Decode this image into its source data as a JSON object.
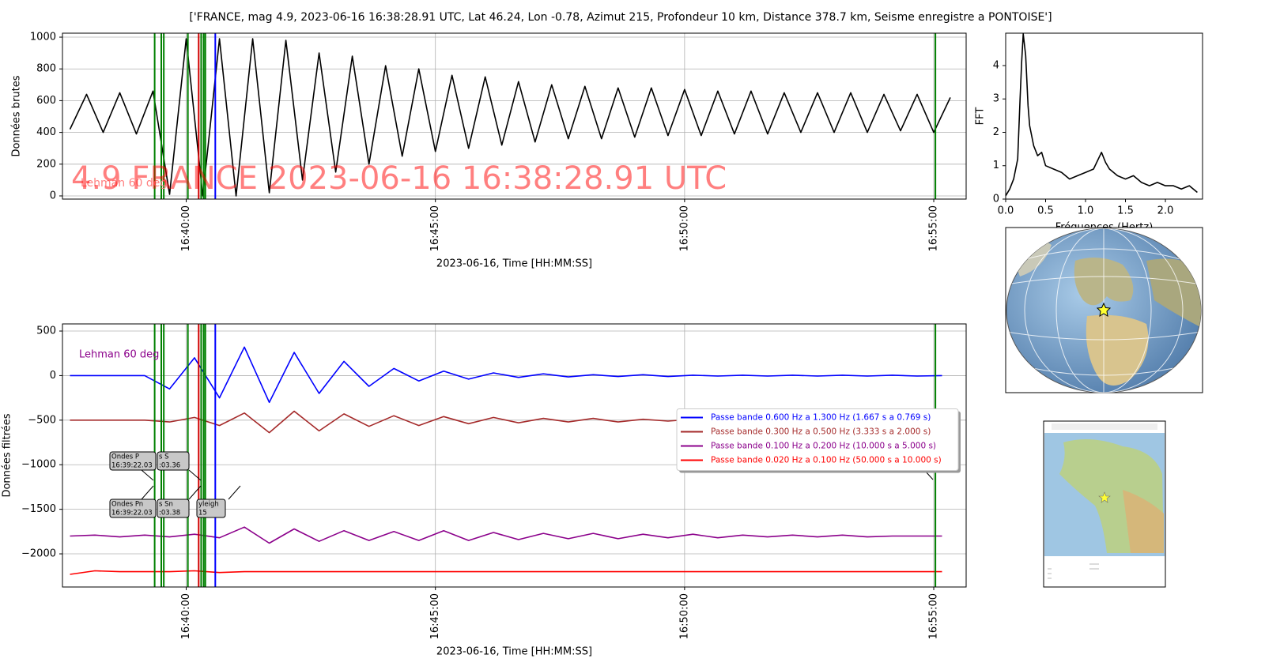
{
  "title": "['FRANCE, mag 4.9, 2023-06-16 16:38:28.91 UTC, Lat 46.24, Lon -0.78, Azimut 215, Profondeur 10 km, Distance 378.7 km, Seisme enregistre a PONTOISE']",
  "phase_lines": [
    {
      "x": "16:39:22",
      "color": "#008000"
    },
    {
      "x": "16:39:30",
      "color": "#008000"
    },
    {
      "x": "16:39:33",
      "color": "#008000"
    },
    {
      "x": "16:40:02",
      "color": "#008000"
    },
    {
      "x": "16:40:15",
      "color": "#d00000"
    },
    {
      "x": "16:40:18",
      "color": "#008000"
    },
    {
      "x": "16:40:21",
      "color": "#008000"
    },
    {
      "x": "16:40:23",
      "color": "#008000"
    },
    {
      "x": "16:40:35",
      "color": "#0000ff"
    },
    {
      "x": "16:55:02",
      "color": "#008000"
    }
  ],
  "chart_data": [
    {
      "type": "line",
      "ylabel": "Données brutes",
      "xlabel": "2023-06-16, Time [HH:MM:SS]",
      "annotations": [
        "Lehman 60 deg",
        "4.9 FRANCE 2023-06-16 16:38:28.91 UTC"
      ],
      "x": [
        "16:37:40",
        "16:38:00",
        "16:38:20",
        "16:38:40",
        "16:39:00",
        "16:39:20",
        "16:39:40",
        "16:40:00",
        "16:40:20",
        "16:40:40",
        "16:41:00",
        "16:41:20",
        "16:41:40",
        "16:42:00",
        "16:42:20",
        "16:42:40",
        "16:43:00",
        "16:43:20",
        "16:43:40",
        "16:44:00",
        "16:44:20",
        "16:44:40",
        "16:45:00",
        "16:45:20",
        "16:45:40",
        "16:46:00",
        "16:46:20",
        "16:46:40",
        "16:47:00",
        "16:47:20",
        "16:47:40",
        "16:48:00",
        "16:48:20",
        "16:48:40",
        "16:49:00",
        "16:49:20",
        "16:49:40",
        "16:50:00",
        "16:50:20",
        "16:50:40",
        "16:51:00",
        "16:51:20",
        "16:51:40",
        "16:52:00",
        "16:52:20",
        "16:52:40",
        "16:53:00",
        "16:53:20",
        "16:53:40",
        "16:54:00",
        "16:54:20",
        "16:54:40",
        "16:55:00",
        "16:55:20"
      ],
      "values": [
        420,
        640,
        400,
        650,
        390,
        660,
        10,
        990,
        0,
        990,
        0,
        990,
        20,
        980,
        100,
        900,
        150,
        880,
        200,
        820,
        250,
        800,
        280,
        760,
        300,
        750,
        320,
        720,
        340,
        700,
        360,
        690,
        360,
        680,
        370,
        680,
        380,
        670,
        380,
        660,
        390,
        660,
        390,
        650,
        400,
        650,
        400,
        650,
        400,
        640,
        410,
        640,
        400,
        620
      ],
      "color": "#000000",
      "xlim": [
        "16:37:31",
        "16:55:39"
      ],
      "xticks": [
        "16:40:00",
        "16:45:00",
        "16:50:00",
        "16:55:00"
      ],
      "ylim": [
        -20,
        1025
      ],
      "yticks": [
        0,
        200,
        400,
        600,
        800,
        1000
      ],
      "grid": true,
      "phase_lines": true
    },
    {
      "type": "line",
      "ylabel": "FFT",
      "xlabel": "Fréquences (Hertz)",
      "x": [
        0,
        0.05,
        0.1,
        0.15,
        0.18,
        0.2,
        0.22,
        0.25,
        0.28,
        0.3,
        0.35,
        0.4,
        0.45,
        0.5,
        0.6,
        0.7,
        0.8,
        0.9,
        1.0,
        1.1,
        1.2,
        1.25,
        1.3,
        1.4,
        1.5,
        1.6,
        1.7,
        1.8,
        1.9,
        2.0,
        2.1,
        2.2,
        2.3,
        2.4
      ],
      "values": [
        0.1,
        0.3,
        0.6,
        1.2,
        3.0,
        4.1,
        4.95,
        4.3,
        2.8,
        2.2,
        1.6,
        1.3,
        1.4,
        1.0,
        0.9,
        0.8,
        0.6,
        0.7,
        0.8,
        0.9,
        1.4,
        1.1,
        0.9,
        0.7,
        0.6,
        0.7,
        0.5,
        0.4,
        0.5,
        0.4,
        0.4,
        0.3,
        0.4,
        0.2
      ],
      "color": "#000000",
      "xlim": [
        0,
        2.465
      ],
      "ylim": [
        0,
        4.97
      ],
      "xticks": [
        {
          "value": 0,
          "label": "0.0"
        },
        0.5,
        {
          "value": 1,
          "label": "1.0"
        },
        1.5,
        {
          "value": 2,
          "label": "2.0"
        }
      ],
      "yticks": [
        0,
        1,
        2,
        3,
        4
      ],
      "grid": false
    },
    {
      "type": "line",
      "ylabel": "Données filtrées",
      "xlabel": "2023-06-16, Time [HH:MM:SS]",
      "annotations": [
        "Lehman 60 deg"
      ],
      "phase_labels": [
        [
          "Ondes P",
          "16:39:22.03"
        ],
        [
          "s S",
          ":03.36"
        ],
        [
          "Ondes Pn",
          "16:39:22.03"
        ],
        [
          "s Sn",
          ":03.38"
        ],
        [
          "yleigh",
          "15"
        ]
      ],
      "x": [
        "16:37:40",
        "16:38:10",
        "16:38:40",
        "16:39:10",
        "16:39:40",
        "16:40:10",
        "16:40:40",
        "16:41:10",
        "16:41:40",
        "16:42:10",
        "16:42:40",
        "16:43:10",
        "16:43:40",
        "16:44:10",
        "16:44:40",
        "16:45:10",
        "16:45:40",
        "16:46:10",
        "16:46:40",
        "16:47:10",
        "16:47:40",
        "16:48:10",
        "16:48:40",
        "16:49:10",
        "16:49:40",
        "16:50:10",
        "16:50:40",
        "16:51:10",
        "16:51:40",
        "16:52:10",
        "16:52:40",
        "16:53:10",
        "16:53:40",
        "16:54:10",
        "16:54:40",
        "16:55:10"
      ],
      "series": [
        {
          "name": "Passe bande 0.600 Hz a 1.300 Hz (1.667 s a 0.769 s)",
          "color": "#0000ff",
          "values": [
            0,
            0,
            0,
            0,
            -150,
            200,
            -250,
            320,
            -300,
            260,
            -200,
            160,
            -120,
            80,
            -60,
            50,
            -40,
            30,
            -20,
            20,
            -15,
            10,
            -10,
            10,
            -10,
            5,
            -5,
            5,
            -5,
            5,
            -5,
            5,
            -5,
            5,
            -5,
            0
          ]
        },
        {
          "name": "Passe bande 0.300 Hz a 0.500 Hz (3.333 s a 2.000 s)",
          "color": "#a52a2a",
          "values": [
            -500,
            -500,
            -500,
            -500,
            -520,
            -470,
            -560,
            -420,
            -640,
            -400,
            -620,
            -430,
            -570,
            -450,
            -560,
            -460,
            -540,
            -470,
            -530,
            -480,
            -520,
            -480,
            -520,
            -490,
            -510,
            -490,
            -510,
            -490,
            -510,
            -495,
            -505,
            -495,
            -505,
            -500,
            -500,
            -500
          ]
        },
        {
          "name": "Passe bande 0.100 Hz a 0.200 Hz (10.000 s a 5.000 s)",
          "color": "#8b008b",
          "values": [
            -1800,
            -1790,
            -1810,
            -1790,
            -1810,
            -1780,
            -1820,
            -1700,
            -1880,
            -1720,
            -1860,
            -1740,
            -1850,
            -1750,
            -1850,
            -1740,
            -1850,
            -1760,
            -1840,
            -1770,
            -1830,
            -1770,
            -1830,
            -1780,
            -1820,
            -1780,
            -1820,
            -1790,
            -1810,
            -1790,
            -1810,
            -1790,
            -1810,
            -1800,
            -1800,
            -1800
          ]
        },
        {
          "name": "Passe bande 0.020 Hz a 0.100 Hz (50.000 s a 10.000 s)",
          "color": "#ff0000",
          "values": [
            -2230,
            -2190,
            -2200,
            -2200,
            -2200,
            -2190,
            -2210,
            -2200,
            -2200,
            -2200,
            -2200,
            -2200,
            -2200,
            -2200,
            -2200,
            -2200,
            -2200,
            -2200,
            -2200,
            -2200,
            -2200,
            -2200,
            -2200,
            -2200,
            -2200,
            -2200,
            -2200,
            -2200,
            -2200,
            -2200,
            -2200,
            -2200,
            -2200,
            -2200,
            -2200,
            -2200
          ]
        }
      ],
      "xlim": [
        "16:37:31",
        "16:55:39"
      ],
      "xticks": [
        "16:40:00",
        "16:45:00",
        "16:50:00",
        "16:55:00"
      ],
      "ylim": [
        -2372,
        580
      ],
      "yticks": [
        500,
        0,
        {
          "value": -500,
          "label": "−500"
        },
        {
          "value": -1000,
          "label": "−1000"
        },
        {
          "value": -1500,
          "label": "−1500"
        },
        {
          "value": -2000,
          "label": "−2000"
        }
      ],
      "grid": true,
      "legend": "center right",
      "phase_lines": true
    }
  ]
}
